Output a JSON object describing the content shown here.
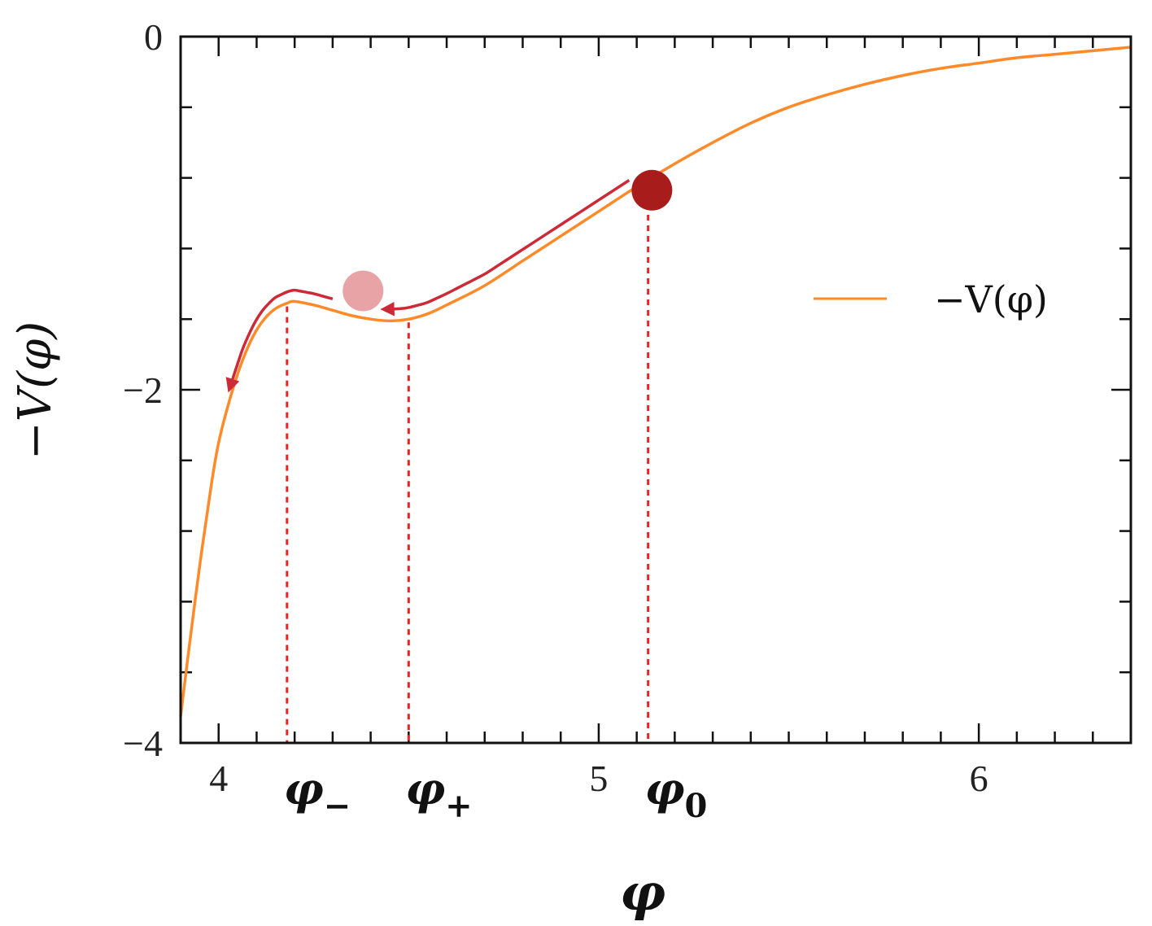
{
  "chart_data": {
    "type": "line",
    "xlabel": "φ",
    "ylabel": "−V(φ)",
    "xlim": [
      3.9,
      6.4
    ],
    "ylim": [
      -4,
      0
    ],
    "xticks": [
      {
        "value": 4,
        "label": "4"
      },
      {
        "value": 5,
        "label": "5"
      },
      {
        "value": 6,
        "label": "6"
      }
    ],
    "yticks": [
      {
        "value": 0,
        "label": "0"
      },
      {
        "value": -2,
        "label": "−2"
      },
      {
        "value": -4,
        "label": "−4"
      }
    ],
    "series": [
      {
        "name": "−V(φ)",
        "color": "#ff8a2a",
        "x": [
          3.9,
          3.92,
          3.95,
          3.98,
          4.0,
          4.03,
          4.06,
          4.09,
          4.12,
          4.15,
          4.18,
          4.2,
          4.25,
          4.3,
          4.35,
          4.4,
          4.45,
          4.5,
          4.55,
          4.6,
          4.7,
          4.8,
          4.9,
          5.0,
          5.1,
          5.2,
          5.3,
          5.4,
          5.5,
          5.6,
          5.7,
          5.8,
          5.9,
          6.0,
          6.1,
          6.2,
          6.3,
          6.4
        ],
        "y": [
          -3.85,
          -3.5,
          -3.0,
          -2.55,
          -2.3,
          -2.05,
          -1.85,
          -1.7,
          -1.6,
          -1.54,
          -1.51,
          -1.5,
          -1.52,
          -1.55,
          -1.58,
          -1.6,
          -1.61,
          -1.6,
          -1.57,
          -1.52,
          -1.41,
          -1.27,
          -1.13,
          -0.99,
          -0.85,
          -0.72,
          -0.6,
          -0.49,
          -0.4,
          -0.33,
          -0.27,
          -0.22,
          -0.18,
          -0.15,
          -0.12,
          -0.1,
          -0.08,
          -0.06
        ]
      }
    ],
    "markers": [
      {
        "name": "φ_0",
        "x": 5.13,
        "label": "φ",
        "subscript": "0"
      },
      {
        "name": "φ_+",
        "x": 4.5,
        "label": "φ",
        "subscript": "+"
      },
      {
        "name": "φ_-",
        "x": 4.18,
        "label": "φ",
        "subscript": "−"
      }
    ],
    "balls": [
      {
        "x": 5.14,
        "y": -0.87,
        "color": "#a81c1c"
      },
      {
        "x": 4.38,
        "y": -1.44,
        "color": "#e8a3a6"
      }
    ],
    "arrow_color": "#cc2a36",
    "guide_color": "#ee2222",
    "legend_position": "right"
  }
}
